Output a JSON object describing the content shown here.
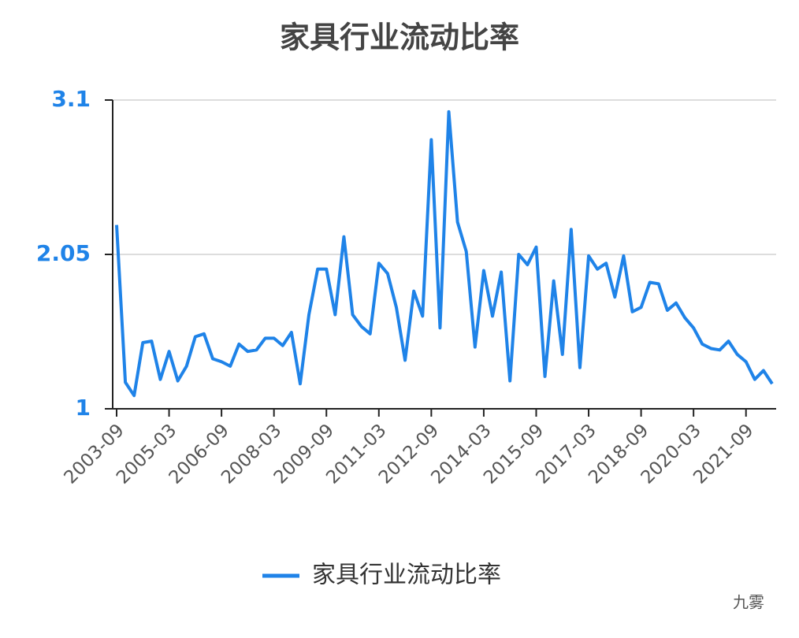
{
  "chart_data": {
    "type": "line",
    "title": "家具行业流动比率",
    "x": [
      "2003-09",
      null,
      null,
      null,
      null,
      null,
      "2005-03",
      null,
      null,
      null,
      null,
      null,
      "2006-09",
      null,
      null,
      null,
      null,
      null,
      "2008-03",
      null,
      null,
      null,
      null,
      null,
      "2009-09",
      null,
      null,
      null,
      null,
      null,
      "2011-03",
      null,
      null,
      null,
      null,
      null,
      "2012-09",
      null,
      null,
      null,
      null,
      null,
      "2014-03",
      null,
      null,
      null,
      null,
      null,
      "2015-09",
      null,
      null,
      null,
      null,
      null,
      "2017-03",
      null,
      null,
      null,
      null,
      null,
      "2018-09",
      null,
      null,
      null,
      null,
      null,
      "2020-03",
      null,
      null,
      null,
      null,
      null,
      "2021-09",
      null,
      null,
      null
    ],
    "series": [
      {
        "name": "家具行业流动比率",
        "color": "#1f83e8",
        "values": [
          2.25,
          1.18,
          1.09,
          1.45,
          1.46,
          1.2,
          1.39,
          1.19,
          1.29,
          1.49,
          1.51,
          1.34,
          1.32,
          1.29,
          1.44,
          1.39,
          1.4,
          1.48,
          1.48,
          1.43,
          1.52,
          1.17,
          1.64,
          1.95,
          1.95,
          1.64,
          2.17,
          1.64,
          1.56,
          1.51,
          1.99,
          1.92,
          1.69,
          1.33,
          1.8,
          1.63,
          2.83,
          1.55,
          3.02,
          2.27,
          2.07,
          1.42,
          1.94,
          1.63,
          1.93,
          1.19,
          2.05,
          1.98,
          2.1,
          1.22,
          1.87,
          1.37,
          2.22,
          1.28,
          2.04,
          1.95,
          1.99,
          1.76,
          2.04,
          1.66,
          1.69,
          1.86,
          1.85,
          1.67,
          1.72,
          1.62,
          1.55,
          1.44,
          1.41,
          1.4,
          1.46,
          1.37,
          1.32,
          1.2,
          1.26,
          1.17
        ]
      }
    ],
    "ylim": [
      1,
      3.1
    ],
    "yticks": [
      1,
      2.05,
      3.1
    ],
    "grid": true,
    "watermark": "九雾"
  }
}
